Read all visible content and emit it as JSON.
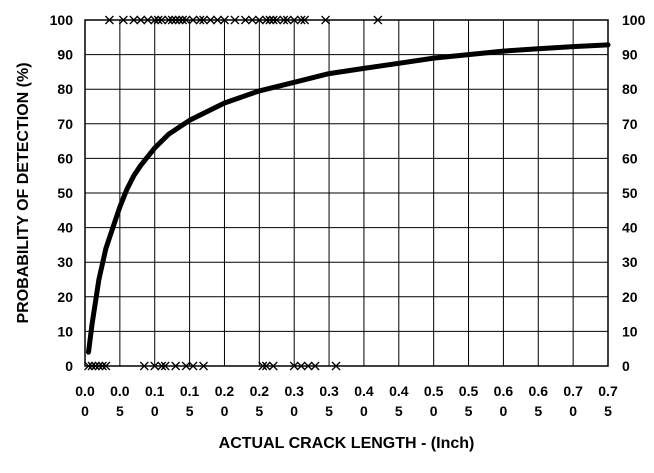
{
  "chart_data": {
    "type": "line",
    "title": "",
    "xlabel": "ACTUAL CRACK LENGTH - (Inch)",
    "ylabel": "PROBABILITY OF DETECTION (%)",
    "xlim": [
      0,
      0.75
    ],
    "ylim": [
      0,
      100
    ],
    "grid": true,
    "x_tick_labels": [
      [
        "0.0",
        "0"
      ],
      [
        "0.0",
        "5"
      ],
      [
        "0.1",
        "0"
      ],
      [
        "0.1",
        "5"
      ],
      [
        "0.2",
        "0"
      ],
      [
        "0.2",
        "5"
      ],
      [
        "0.3",
        "0"
      ],
      [
        "0.3",
        "5"
      ],
      [
        "0.4",
        "0"
      ],
      [
        "0.4",
        "5"
      ],
      [
        "0.5",
        "0"
      ],
      [
        "0.5",
        "5"
      ],
      [
        "0.6",
        "0"
      ],
      [
        "0.6",
        "5"
      ],
      [
        "0.7",
        "0"
      ],
      [
        "0.7",
        "5"
      ]
    ],
    "x_ticks": [
      0,
      0.05,
      0.1,
      0.15,
      0.2,
      0.25,
      0.3,
      0.35,
      0.4,
      0.45,
      0.5,
      0.55,
      0.6,
      0.65,
      0.7,
      0.75
    ],
    "y_ticks": [
      0,
      10,
      20,
      30,
      40,
      50,
      60,
      70,
      80,
      90,
      100
    ],
    "series": [
      {
        "type": "line",
        "x": [
          0.005,
          0.01,
          0.02,
          0.03,
          0.04,
          0.05,
          0.06,
          0.07,
          0.08,
          0.1,
          0.12,
          0.15,
          0.2,
          0.25,
          0.3,
          0.35,
          0.4,
          0.45,
          0.5,
          0.55,
          0.6,
          0.65,
          0.7,
          0.75
        ],
        "y": [
          4,
          12,
          25,
          34,
          40,
          46,
          51,
          55,
          58,
          63,
          67,
          71,
          76,
          79.5,
          82,
          84.5,
          86,
          87.5,
          89,
          90,
          91,
          91.7,
          92.3,
          92.8
        ]
      },
      {
        "type": "scatter",
        "marker": "x",
        "x": [
          0.035,
          0.055,
          0.07,
          0.08,
          0.09,
          0.1,
          0.105,
          0.11,
          0.12,
          0.125,
          0.13,
          0.135,
          0.14,
          0.145,
          0.155,
          0.165,
          0.17,
          0.18,
          0.19,
          0.2,
          0.215,
          0.23,
          0.24,
          0.25,
          0.26,
          0.265,
          0.27,
          0.275,
          0.285,
          0.29,
          0.3,
          0.31,
          0.315,
          0.345,
          0.42
        ],
        "y": [
          100,
          100,
          100,
          100,
          100,
          100,
          100,
          100,
          100,
          100,
          100,
          100,
          100,
          100,
          100,
          100,
          100,
          100,
          100,
          100,
          100,
          100,
          100,
          100,
          100,
          100,
          100,
          100,
          100,
          100,
          100,
          100,
          100,
          100,
          100
        ]
      },
      {
        "type": "scatter",
        "marker": "x",
        "x": [
          0.005,
          0.01,
          0.015,
          0.02,
          0.025,
          0.03,
          0.085,
          0.1,
          0.11,
          0.115,
          0.13,
          0.145,
          0.155,
          0.17,
          0.255,
          0.26,
          0.27,
          0.3,
          0.31,
          0.32,
          0.33,
          0.36
        ],
        "y": [
          0,
          0,
          0,
          0,
          0,
          0,
          0,
          0,
          0,
          0,
          0,
          0,
          0,
          0,
          0,
          0,
          0,
          0,
          0,
          0,
          0,
          0
        ]
      }
    ]
  }
}
